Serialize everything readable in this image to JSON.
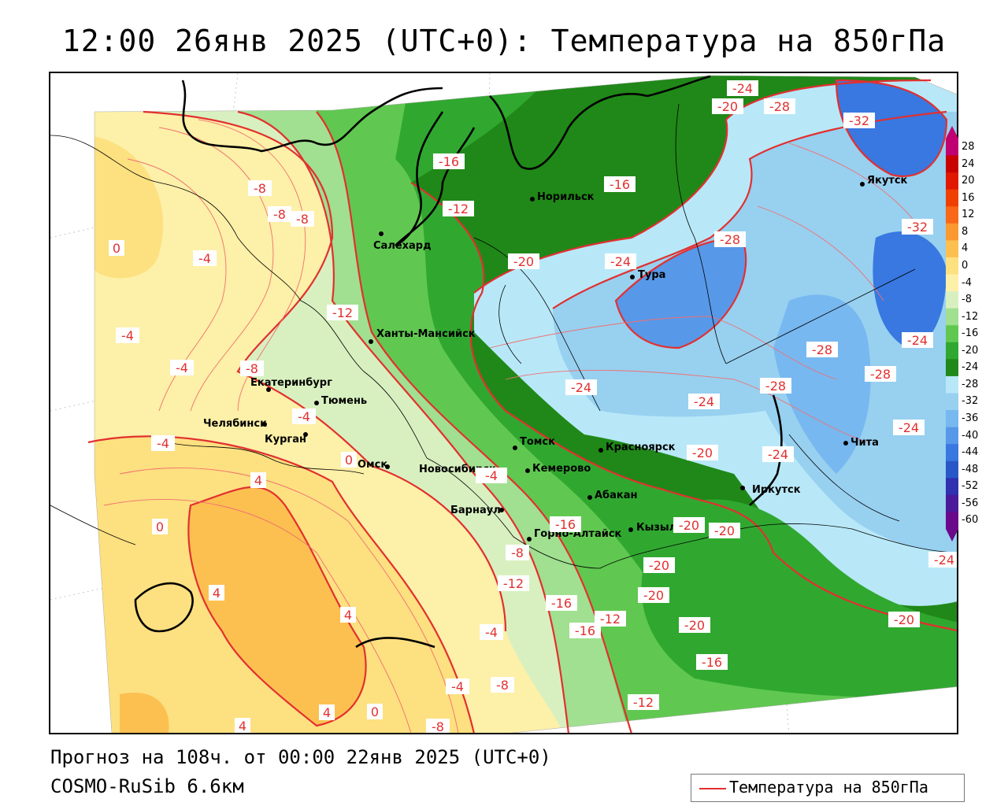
{
  "header": {
    "title": "12:00 26янв 2025 (UTC+0): Температура на 850гПа"
  },
  "footer": {
    "forecast": "Прогноз на 108ч. от 00:00 22янв 2025 (UTC+0)",
    "model": "COSMO-RuSib 6.6км"
  },
  "legend": {
    "line_label": "Температура на 850гПа",
    "line_color": "#e23030"
  },
  "colorscale": {
    "labels": [
      "28",
      "24",
      "20",
      "16",
      "12",
      "8",
      "4",
      "0",
      "-4",
      "-8",
      "-12",
      "-16",
      "-20",
      "-24",
      "-28",
      "-32",
      "-36",
      "-40",
      "-44",
      "-48",
      "-52",
      "-56",
      "-60"
    ],
    "colors": [
      "#c00070",
      "#c80000",
      "#e01800",
      "#f04000",
      "#f86818",
      "#fb9830",
      "#fcc050",
      "#fde080",
      "#fdf0a8",
      "#d8f0c0",
      "#a0e090",
      "#60c850",
      "#30a830",
      "#208818",
      "#b8e8f8",
      "#98d0f0",
      "#78b8f0",
      "#5898e8",
      "#3878e0",
      "#2858c8",
      "#3030b0",
      "#4a1a9a",
      "#6a0a8a"
    ]
  },
  "cities": [
    {
      "name": "Салехард"
    },
    {
      "name": "Норильск"
    },
    {
      "name": "Тура"
    },
    {
      "name": "Якутск"
    },
    {
      "name": "Ханты-Мансийск"
    },
    {
      "name": "Екатеринбург"
    },
    {
      "name": "Тюмень"
    },
    {
      "name": "Челябинск"
    },
    {
      "name": "Курган"
    },
    {
      "name": "Омск"
    },
    {
      "name": "Новосибирск"
    },
    {
      "name": "Томск"
    },
    {
      "name": "Кемерово"
    },
    {
      "name": "Красноярск"
    },
    {
      "name": "Абакан"
    },
    {
      "name": "Барнаул"
    },
    {
      "name": "Горно-Алтайск"
    },
    {
      "name": "Кызыл"
    },
    {
      "name": "Иркутск"
    },
    {
      "name": "Чита"
    }
  ],
  "isotherm_labels": [
    "-24",
    "-20",
    "-28",
    "-32",
    "-16",
    "-16",
    "-8",
    "-8",
    "-8",
    "0",
    "-4",
    "-20",
    "-24",
    "-28",
    "-12",
    "-4",
    "-8",
    "-4",
    "-4",
    "-4",
    "0",
    "4",
    "0",
    "-4",
    "4",
    "4",
    "-8",
    "-12",
    "-16",
    "-16",
    "-12",
    "-24",
    "-20",
    "-20",
    "-24",
    "-28",
    "-28",
    "-24",
    "-28",
    "-32",
    "-24",
    "-20",
    "-24",
    "-24",
    "-20",
    "-16",
    "-20",
    "-20",
    "-20",
    "-16",
    "-12",
    "-4",
    "-8",
    "-4",
    "0",
    "-8",
    "4",
    "4",
    "-12"
  ]
}
